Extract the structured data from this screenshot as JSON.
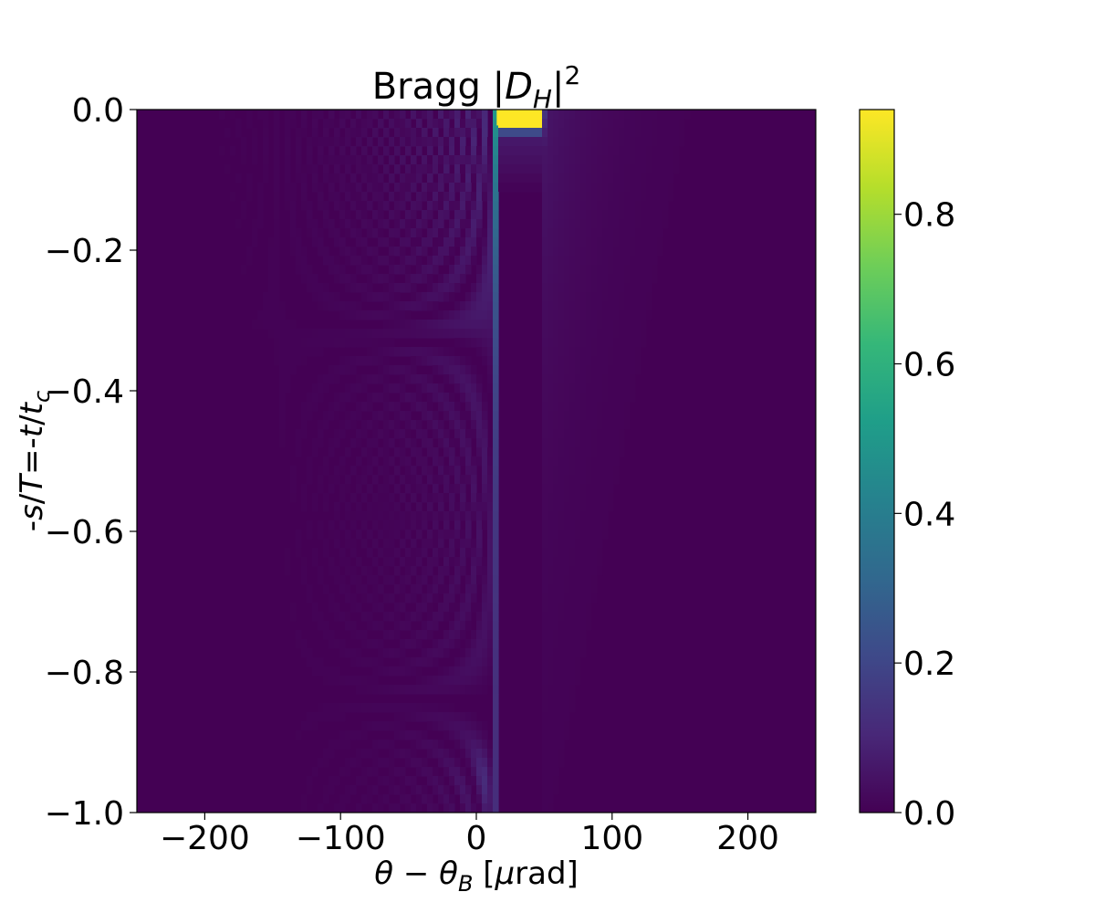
{
  "chart_data": {
    "type": "heatmap",
    "title": {
      "prefix": "Bragg |",
      "var": "D",
      "sub": "H",
      "suffix": "|",
      "sup": "2"
    },
    "xlabel": {
      "theta": "θ",
      "minus": " − ",
      "theta2": "θ",
      "sub": "B",
      "unit_open": " [",
      "mu": "μ",
      "unit_rest": "rad]"
    },
    "ylabel": {
      "p1": "-",
      "s": "s",
      "p2": "/",
      "T": "T",
      "p3": "=-",
      "t": "t",
      "p4": "/",
      "t2": "t",
      "sub": "c"
    },
    "xlim": [
      -250,
      250
    ],
    "ylim": [
      -1.0,
      0.0
    ],
    "xticks": [
      -200,
      -100,
      0,
      100,
      200
    ],
    "xtick_labels": [
      "−200",
      "−100",
      "0",
      "100",
      "200"
    ],
    "yticks": [
      0.0,
      -0.2,
      -0.4,
      -0.6,
      -0.8,
      -1.0
    ],
    "ytick_labels": [
      "0.0",
      "−0.2",
      "−0.4",
      "−0.6",
      "−0.8",
      "−1.0"
    ],
    "colorbar": {
      "colormap": "viridis",
      "range": [
        0.0,
        0.94
      ],
      "ticks": [
        0.0,
        0.2,
        0.4,
        0.6,
        0.8
      ],
      "tick_labels": [
        "0.0",
        "0.2",
        "0.4",
        "0.6",
        "0.8"
      ]
    },
    "features": {
      "total_reflection_band_x": [
        15,
        48
      ],
      "peak_value": 0.94,
      "peak_depth_range": [
        0.0,
        -0.02
      ],
      "background_value": 0.0
    }
  },
  "colors": {
    "viridis_stops": [
      "#440154",
      "#482878",
      "#3e4989",
      "#31688e",
      "#26828e",
      "#1f9e89",
      "#35b779",
      "#6ece58",
      "#b5de2b",
      "#fde725"
    ]
  }
}
